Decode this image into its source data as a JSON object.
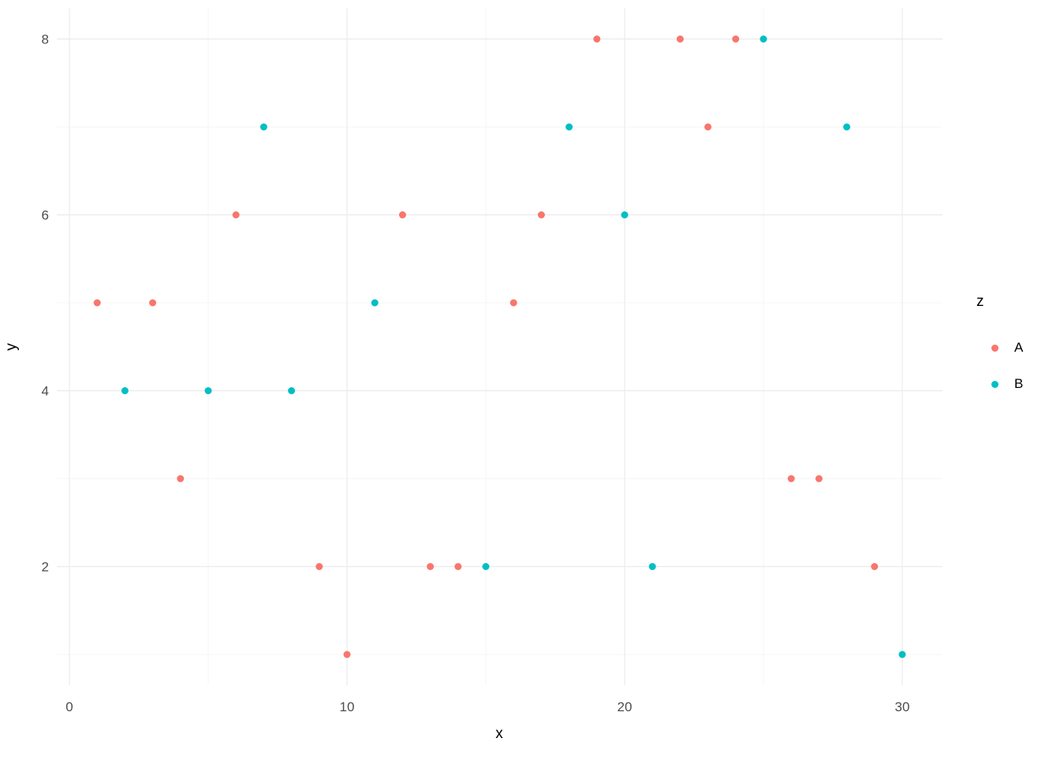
{
  "chart_data": {
    "type": "scatter",
    "title": "",
    "xlabel": "x",
    "ylabel": "y",
    "xlim": [
      -0.45,
      31.45
    ],
    "ylim": [
      0.65,
      8.35
    ],
    "x_ticks": [
      0,
      10,
      20,
      30
    ],
    "y_ticks": [
      2,
      4,
      6,
      8
    ],
    "x_minor": [
      5,
      15,
      25
    ],
    "y_minor": [
      1,
      3,
      5,
      7
    ],
    "grid": true,
    "legend": {
      "title": "z",
      "position": "right"
    },
    "series": [
      {
        "name": "A",
        "color": "#F8766D",
        "points": [
          [
            1,
            5
          ],
          [
            3,
            5
          ],
          [
            4,
            3
          ],
          [
            6,
            6
          ],
          [
            9,
            2
          ],
          [
            10,
            1
          ],
          [
            12,
            6
          ],
          [
            13,
            2
          ],
          [
            14,
            2
          ],
          [
            16,
            5
          ],
          [
            17,
            6
          ],
          [
            19,
            8
          ],
          [
            22,
            8
          ],
          [
            23,
            7
          ],
          [
            24,
            8
          ],
          [
            26,
            3
          ],
          [
            27,
            3
          ],
          [
            29,
            2
          ]
        ]
      },
      {
        "name": "B",
        "color": "#00BFC4",
        "points": [
          [
            2,
            4
          ],
          [
            5,
            4
          ],
          [
            7,
            7
          ],
          [
            8,
            4
          ],
          [
            11,
            5
          ],
          [
            15,
            2
          ],
          [
            18,
            7
          ],
          [
            20,
            6
          ],
          [
            21,
            2
          ],
          [
            25,
            8
          ],
          [
            28,
            7
          ],
          [
            30,
            1
          ]
        ]
      }
    ]
  },
  "colors": {
    "background": "#FFFFFF",
    "grid_major": "#EBEBEB",
    "grid_minor": "#F3F3F3",
    "tick_label": "#4D4D4D",
    "axis_title": "#000000",
    "series_a": "#F8766D",
    "series_b": "#00BFC4"
  }
}
